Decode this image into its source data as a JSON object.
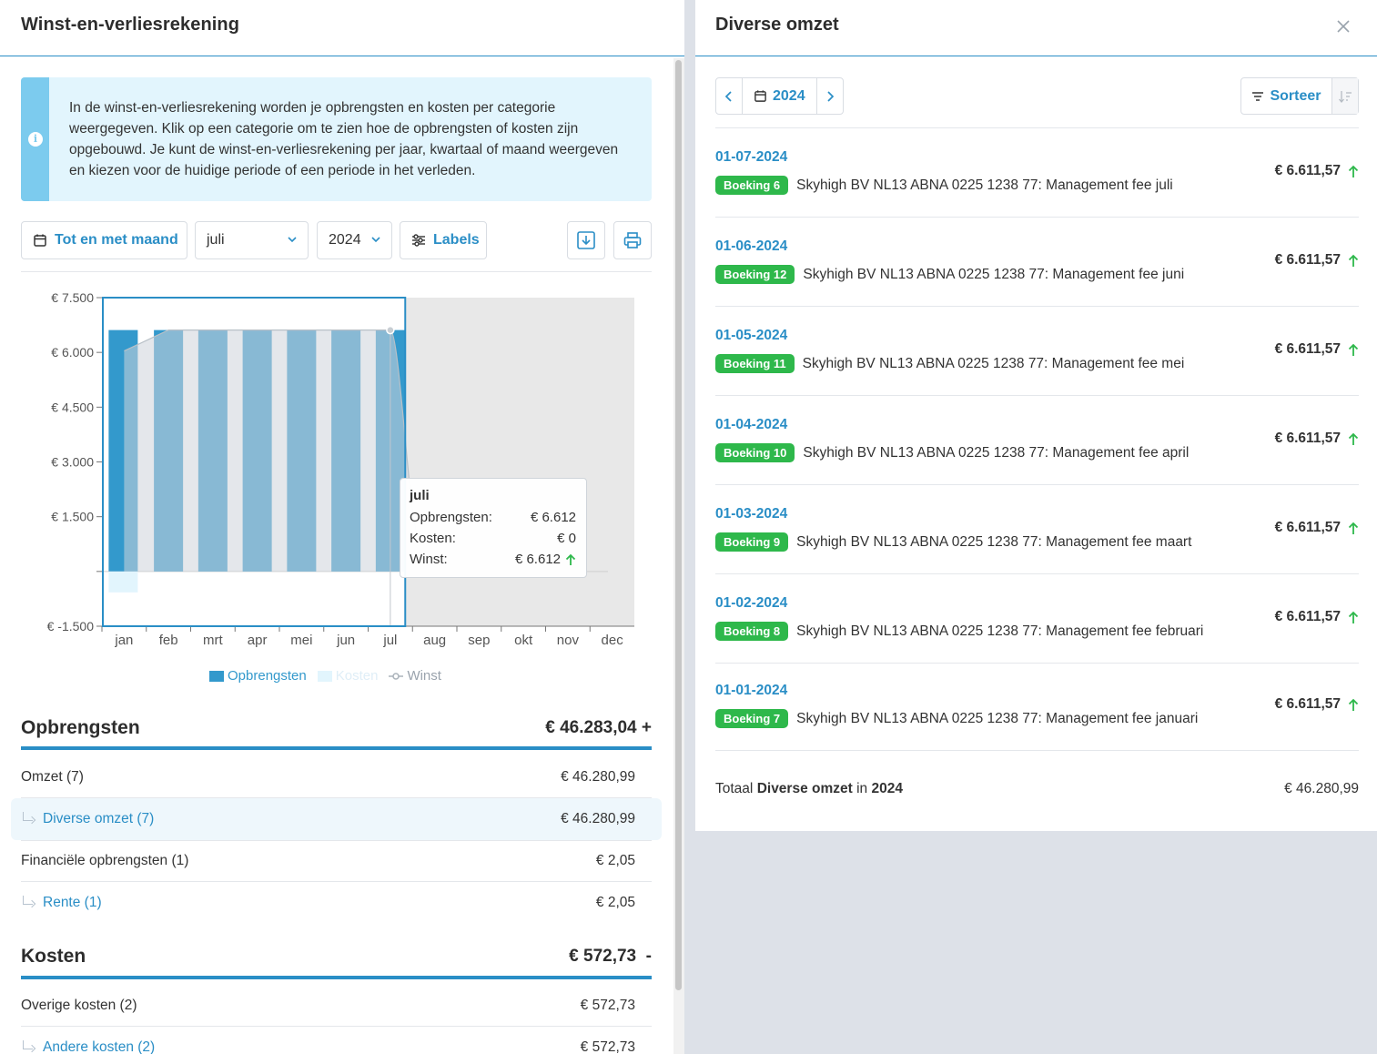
{
  "left": {
    "title": "Winst-en-verliesrekening",
    "info_text": "In de winst-en-verliesrekening worden je opbrengsten en kosten per categorie weergegeven. Klik op een categorie om te zien hoe de opbrengsten of kosten zijn opgebouwd. Je kunt de winst-en-verliesrekening per jaar, kwartaal of maand weergeven en kiezen voor de huidige periode of een periode in het verleden.",
    "toolbar": {
      "period_label": "Tot en met maand",
      "month": "juli",
      "year": "2024",
      "labels_label": "Labels"
    },
    "tooltip": {
      "title": "juli",
      "rows": [
        {
          "label": "Opbrengsten:",
          "value": "€ 6.612"
        },
        {
          "label": "Kosten:",
          "value": "€ 0"
        },
        {
          "label": "Winst:",
          "value": "€ 6.612"
        }
      ]
    },
    "legend": [
      "Opbrengsten",
      "Kosten",
      "Winst"
    ],
    "opbrengsten": {
      "title": "Opbrengsten",
      "total": "€ 46.283,04 +",
      "rows": [
        {
          "label": "Omzet (7)",
          "value": "€ 46.280,99"
        },
        {
          "label": "Diverse omzet (7)",
          "value": "€ 46.280,99"
        },
        {
          "label": "Financiële opbrengsten (1)",
          "value": "€ 2,05"
        },
        {
          "label": "Rente (1)",
          "value": "€ 2,05"
        }
      ]
    },
    "kosten": {
      "title": "Kosten",
      "total": "€ 572,73  -",
      "rows": [
        {
          "label": "Overige kosten (2)",
          "value": "€ 572,73"
        },
        {
          "label": "Andere kosten (2)",
          "value": "€ 572,73"
        }
      ]
    }
  },
  "chart_data": {
    "type": "bar",
    "categories": [
      "jan",
      "feb",
      "mrt",
      "apr",
      "mei",
      "jun",
      "jul",
      "aug",
      "sep",
      "okt",
      "nov",
      "dec"
    ],
    "y_ticks": [
      "€ 7.500",
      "€ 6.000",
      "€ 4.500",
      "€ 3.000",
      "€ 1.500",
      "€ -1.500"
    ],
    "ylim": [
      -1500,
      7500
    ],
    "series": [
      {
        "name": "Opbrengsten",
        "values": [
          6612,
          6612,
          6612,
          6612,
          6612,
          6612,
          6612,
          null,
          null,
          null,
          null,
          null
        ],
        "color": "#3399cc"
      },
      {
        "name": "Kosten",
        "values": [
          -573,
          0,
          0,
          0,
          0,
          0,
          0,
          null,
          null,
          null,
          null,
          null
        ],
        "color": "#e2f5fd"
      },
      {
        "name": "Winst",
        "values": [
          6039,
          6612,
          6612,
          6612,
          6612,
          6612,
          6612,
          null,
          null,
          null,
          null,
          null
        ],
        "color": "#c6cdd3"
      }
    ],
    "selected_range": [
      "jan",
      "jul"
    ],
    "highlighted": "jul"
  },
  "right": {
    "title": "Diverse omzet",
    "year": "2024",
    "sort_label": "Sorteer",
    "transactions": [
      {
        "date": "01-07-2024",
        "badge": "Boeking 6",
        "desc": "Skyhigh BV NL13 ABNA 0225 1238 77: Management fee juli",
        "amount": "€ 6.611,57"
      },
      {
        "date": "01-06-2024",
        "badge": "Boeking 12",
        "desc": "Skyhigh BV NL13 ABNA 0225 1238 77: Management fee juni",
        "amount": "€ 6.611,57"
      },
      {
        "date": "01-05-2024",
        "badge": "Boeking 11",
        "desc": "Skyhigh BV NL13 ABNA 0225 1238 77: Management fee mei",
        "amount": "€ 6.611,57"
      },
      {
        "date": "01-04-2024",
        "badge": "Boeking 10",
        "desc": "Skyhigh BV NL13 ABNA 0225 1238 77: Management fee april",
        "amount": "€ 6.611,57"
      },
      {
        "date": "01-03-2024",
        "badge": "Boeking 9",
        "desc": "Skyhigh BV NL13 ABNA 0225 1238 77: Management fee maart",
        "amount": "€ 6.611,57"
      },
      {
        "date": "01-02-2024",
        "badge": "Boeking 8",
        "desc": "Skyhigh BV NL13 ABNA 0225 1238 77: Management fee februari",
        "amount": "€ 6.611,57"
      },
      {
        "date": "01-01-2024",
        "badge": "Boeking 7",
        "desc": "Skyhigh BV NL13 ABNA 0225 1238 77: Management fee januari",
        "amount": "€ 6.611,57"
      }
    ],
    "total": {
      "prefix": "Totaal",
      "category": "Diverse omzet",
      "in": "in",
      "year": "2024",
      "amount": "€ 46.280,99"
    }
  }
}
